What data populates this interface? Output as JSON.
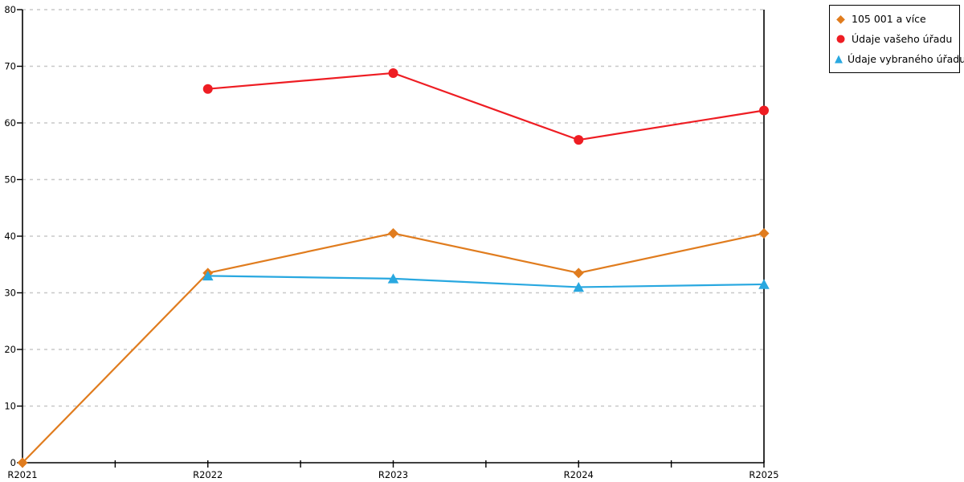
{
  "chart_data": {
    "type": "line",
    "title": "",
    "xlabel": "",
    "ylabel": "",
    "categories": [
      "R2021",
      "R2022",
      "R2023",
      "R2024",
      "R2025"
    ],
    "series": [
      {
        "name": "105 001 a více",
        "marker": "diamond",
        "color": "#E07C1E",
        "values": [
          0,
          33.5,
          40.5,
          33.5,
          40.5
        ]
      },
      {
        "name": "Údaje vašeho úřadu",
        "marker": "circle",
        "color": "#EE1D23",
        "values": [
          null,
          66,
          68.8,
          57,
          62.2
        ]
      },
      {
        "name": "Údaje vybraného úřadu",
        "marker": "triangle",
        "color": "#29A8E0",
        "values": [
          null,
          33,
          32.5,
          31,
          31.5
        ]
      }
    ],
    "ylim": [
      0,
      80
    ],
    "ytick_step": 10,
    "yticks": [
      0,
      10,
      20,
      30,
      40,
      50,
      60,
      70,
      80
    ],
    "grid": "horizontal-dashed",
    "gridline_color": "#c8c8c8",
    "axis_color": "#000000",
    "legend_position": "top-right",
    "legend_border_color": "#000000"
  }
}
